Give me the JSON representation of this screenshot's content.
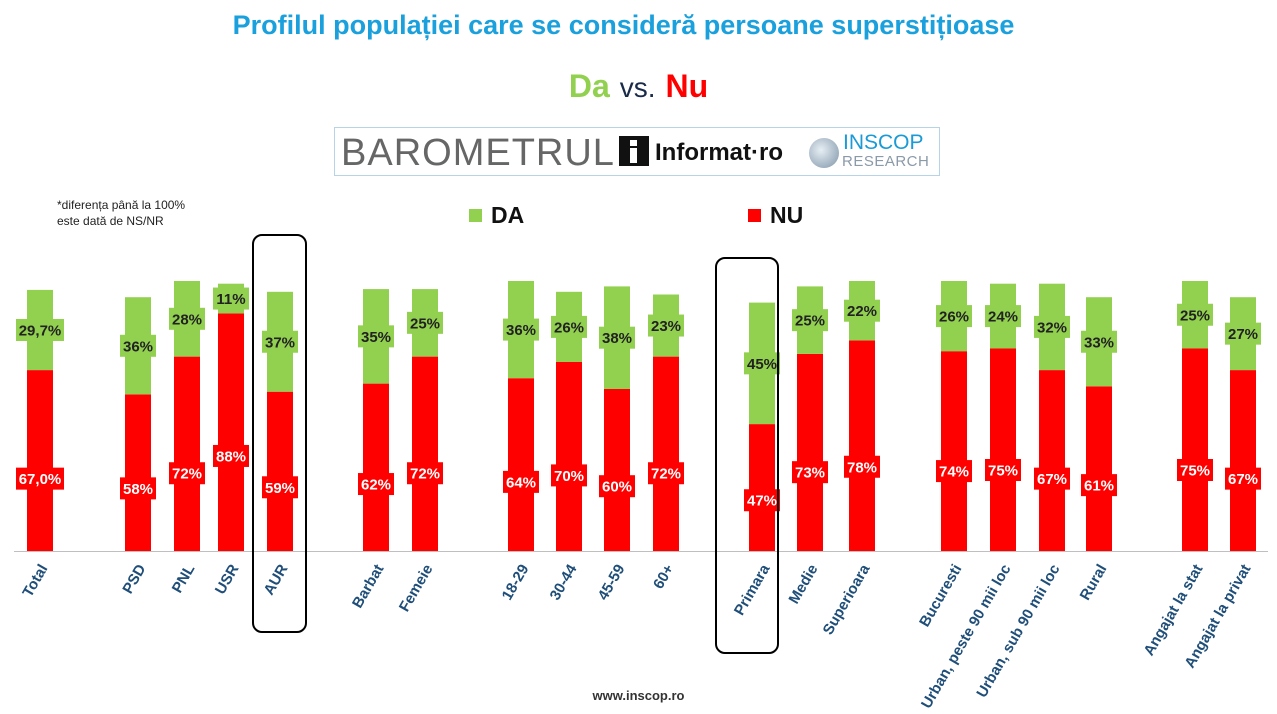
{
  "title": "Profilul populației care se consideră persoane superstițioase",
  "subtitle": {
    "da": "Da",
    "vs": "vs.",
    "nu": "Nu"
  },
  "logo": {
    "barometru": "BAROMETRUL",
    "informat": "Informat·ro",
    "inscop_line1": "INSCOP",
    "inscop_line2": "RESEARCH"
  },
  "note": {
    "line1": "*diferența până la 100%",
    "line2": "este dată de NS/NR"
  },
  "legend": {
    "da": "DA",
    "nu": "NU"
  },
  "footer": "www.inscop.ro",
  "colors": {
    "da": "#92d050",
    "nu": "#ff0000",
    "title": "#1aa0dc",
    "axis_label": "#1f4e79"
  },
  "chart_data": {
    "type": "bar",
    "stacked": true,
    "ylim": [
      0,
      100
    ],
    "categories": [
      "Total",
      "PSD",
      "PNL",
      "USR",
      "AUR",
      "Barbat",
      "Femeie",
      "18-29",
      "30-44",
      "45-59",
      "60+",
      "Primara",
      "Medie",
      "Superioara",
      "Bucuresti",
      "Urban, peste 90 mii loc",
      "Urban, sub 90 mii loc",
      "Rural",
      "Angajat la stat",
      "Angajat la privat"
    ],
    "highlighted": [
      "AUR",
      "Primara"
    ],
    "series": [
      {
        "name": "NU",
        "values": [
          67.0,
          58,
          72,
          88,
          59,
          62,
          72,
          64,
          70,
          60,
          72,
          47,
          73,
          78,
          74,
          75,
          67,
          61,
          75,
          67
        ],
        "labels": [
          "67,0%",
          "58%",
          "72%",
          "88%",
          "59%",
          "62%",
          "72%",
          "64%",
          "70%",
          "60%",
          "72%",
          "47%",
          "73%",
          "78%",
          "74%",
          "75%",
          "67%",
          "61%",
          "75%",
          "67%"
        ]
      },
      {
        "name": "DA",
        "values": [
          29.7,
          36,
          28,
          11,
          37,
          35,
          25,
          36,
          26,
          38,
          23,
          45,
          25,
          22,
          26,
          24,
          32,
          33,
          25,
          27
        ],
        "labels": [
          "29,7%",
          "36%",
          "28%",
          "11%",
          "37%",
          "35%",
          "25%",
          "36%",
          "26%",
          "38%",
          "23%",
          "45%",
          "25%",
          "22%",
          "26%",
          "24%",
          "32%",
          "33%",
          "25%",
          "27%"
        ]
      }
    ]
  }
}
